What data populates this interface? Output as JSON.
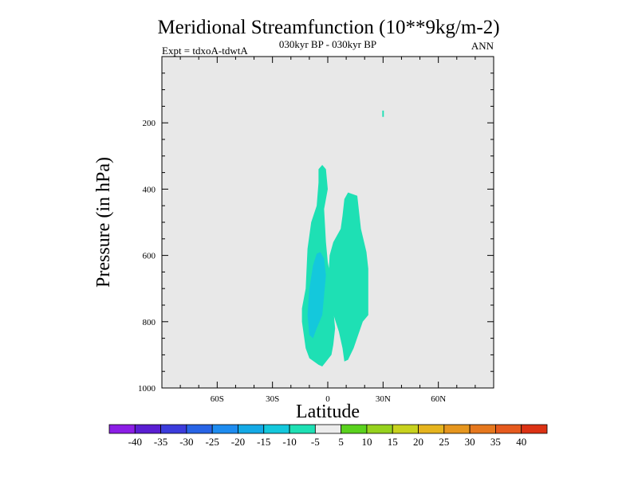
{
  "chart_data": {
    "type": "contour",
    "title": "Meridional Streamfunction (10**9kg/m-2)",
    "subtitle": "030kyr BP - 030kyr BP",
    "left_label": "Expt = tdxoA-tdwtA",
    "right_label": "ANN",
    "xlabel": "Latitude",
    "ylabel": "Pressure (in hPa)",
    "xlim": [
      -90,
      90
    ],
    "ylim": [
      1000,
      0
    ],
    "y_reversed": true,
    "x_ticks": [
      {
        "value": -60,
        "label": "60S"
      },
      {
        "value": -30,
        "label": "30S"
      },
      {
        "value": 0,
        "label": "0"
      },
      {
        "value": 30,
        "label": "30N"
      },
      {
        "value": 60,
        "label": "60N"
      }
    ],
    "y_ticks": [
      {
        "value": 200,
        "label": "200"
      },
      {
        "value": 400,
        "label": "400"
      },
      {
        "value": 600,
        "label": "600"
      },
      {
        "value": 800,
        "label": "800"
      },
      {
        "value": 1000,
        "label": "1000"
      }
    ],
    "background_color": "#e8e8e8",
    "contour_regions": [
      {
        "name": "neg-5-to-10-left-lobe",
        "level_range": [
          -10,
          -5
        ],
        "color": "#1ee0b4",
        "points": [
          [
            -3,
            327
          ],
          [
            -1,
            340
          ],
          [
            0,
            400
          ],
          [
            -2,
            460
          ],
          [
            -1,
            560
          ],
          [
            0,
            620
          ],
          [
            2,
            680
          ],
          [
            3,
            760
          ],
          [
            4,
            820
          ],
          [
            3,
            870
          ],
          [
            2,
            900
          ],
          [
            -3,
            935
          ],
          [
            -5,
            930
          ],
          [
            -10,
            910
          ],
          [
            -12,
            880
          ],
          [
            -14,
            800
          ],
          [
            -14,
            760
          ],
          [
            -12,
            700
          ],
          [
            -11,
            580
          ],
          [
            -9,
            500
          ],
          [
            -6,
            450
          ],
          [
            -5,
            380
          ],
          [
            -5,
            340
          ]
        ]
      },
      {
        "name": "neg-5-to-10-right-lobe",
        "level_range": [
          -10,
          -5
        ],
        "color": "#1ee0b4",
        "points": [
          [
            9,
            430
          ],
          [
            11,
            410
          ],
          [
            16,
            420
          ],
          [
            18,
            520
          ],
          [
            21,
            590
          ],
          [
            22,
            640
          ],
          [
            22,
            780
          ],
          [
            19,
            800
          ],
          [
            14,
            880
          ],
          [
            11,
            915
          ],
          [
            9,
            920
          ],
          [
            8,
            880
          ],
          [
            6,
            830
          ],
          [
            2,
            760
          ],
          [
            0,
            700
          ],
          [
            1,
            600
          ],
          [
            3,
            560
          ],
          [
            7,
            520
          ],
          [
            8,
            480
          ]
        ]
      },
      {
        "name": "neg-10-to-15-core",
        "level_range": [
          -15,
          -10
        ],
        "color": "#14c8dc",
        "points": [
          [
            -4,
            590
          ],
          [
            -2,
            610
          ],
          [
            -1,
            660
          ],
          [
            -2,
            720
          ],
          [
            -3,
            780
          ],
          [
            -6,
            820
          ],
          [
            -8,
            850
          ],
          [
            -10,
            840
          ],
          [
            -11,
            780
          ],
          [
            -10,
            700
          ],
          [
            -8,
            630
          ],
          [
            -6,
            595
          ]
        ]
      },
      {
        "name": "neg-5-to-10-speck",
        "level_range": [
          -10,
          -5
        ],
        "color": "#1ee0b4",
        "points": [
          [
            29.6,
            163
          ],
          [
            30.4,
            163
          ],
          [
            30.4,
            182
          ],
          [
            29.6,
            182
          ]
        ]
      }
    ],
    "colorbar": {
      "colors": [
        "#8c1ee6",
        "#5a1ed2",
        "#3c3cdc",
        "#2864e6",
        "#1e8cf0",
        "#14aae6",
        "#14c8dc",
        "#1ee0b4",
        "#ececec",
        "#5ad21e",
        "#96d21e",
        "#c8d21e",
        "#e6b41e",
        "#e6961e",
        "#e6781e",
        "#e65a1e",
        "#dc3214"
      ],
      "labels": [
        "-40",
        "-35",
        "-30",
        "-25",
        "-20",
        "-15",
        "-10",
        "-5",
        "5",
        "10",
        "15",
        "20",
        "25",
        "30",
        "35",
        "40"
      ]
    }
  }
}
